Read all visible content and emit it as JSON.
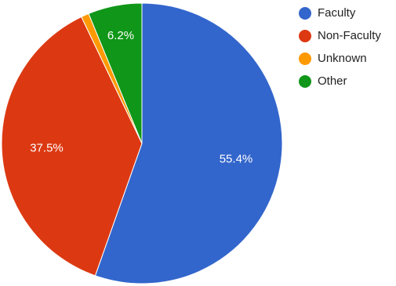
{
  "chart_data": {
    "type": "pie",
    "start_angle_deg": 0,
    "direction": "clockwise",
    "legend_position": "top-right",
    "slices": [
      {
        "name": "Faculty",
        "value": 55.4,
        "label": "55.4%",
        "color": "#3366cc"
      },
      {
        "name": "Non-Faculty",
        "value": 37.5,
        "label": "37.5%",
        "color": "#dc3912"
      },
      {
        "name": "Unknown",
        "value": 0.9,
        "label": "",
        "color": "#ff9900"
      },
      {
        "name": "Other",
        "value": 6.2,
        "label": "6.2%",
        "color": "#109618"
      }
    ]
  }
}
